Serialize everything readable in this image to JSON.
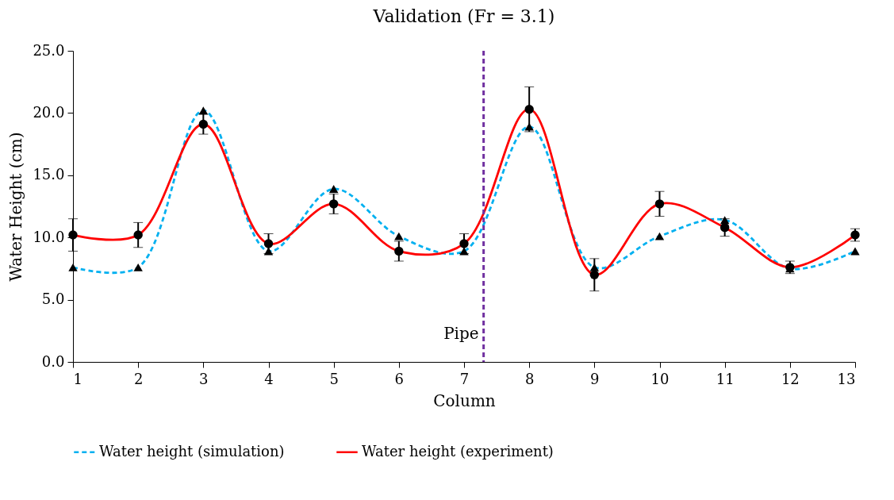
{
  "chart_data": {
    "type": "line",
    "title": "Validation (Fr = 3.1)",
    "xlabel": "Column",
    "ylabel": "Water Height (cm)",
    "x": [
      1,
      2,
      3,
      4,
      5,
      6,
      7,
      8,
      9,
      10,
      11,
      12,
      13
    ],
    "series": [
      {
        "name": "Water height (simulation)",
        "color": "#00b0f0",
        "line_style": "dashed",
        "marker": "triangle",
        "values": [
          7.6,
          7.6,
          20.2,
          8.9,
          13.9,
          10.1,
          8.9,
          18.9,
          7.6,
          10.1,
          11.4,
          7.5,
          8.9
        ]
      },
      {
        "name": "Water height (experiment)",
        "color": "#ff0000",
        "line_style": "solid",
        "marker": "circle",
        "values": [
          10.2,
          10.2,
          19.1,
          9.5,
          12.7,
          8.9,
          9.5,
          20.3,
          7.0,
          12.7,
          10.8,
          7.6,
          10.2
        ],
        "errors": [
          1.3,
          1.0,
          0.8,
          0.8,
          0.8,
          0.8,
          0.8,
          1.8,
          1.3,
          1.0,
          0.7,
          0.5,
          0.5
        ]
      }
    ],
    "xlim": [
      1,
      13
    ],
    "xticks": [
      1,
      2,
      3,
      4,
      5,
      6,
      7,
      8,
      9,
      10,
      11,
      12,
      13
    ],
    "ylim": [
      0,
      25
    ],
    "yticks": [
      {
        "value": 0,
        "label": "0.0"
      },
      {
        "value": 5,
        "label": "5.0"
      },
      {
        "value": 10,
        "label": "10.0"
      },
      {
        "value": 15,
        "label": "15.0"
      },
      {
        "value": 20,
        "label": "20.0"
      },
      {
        "value": 25,
        "label": "25.0"
      }
    ],
    "ref_lines": [
      {
        "axis": "x",
        "value": 7.3,
        "label": "Pipe",
        "color": "#7030a0",
        "line_style": "dashed"
      }
    ],
    "legend": "bottom",
    "grid": false
  }
}
